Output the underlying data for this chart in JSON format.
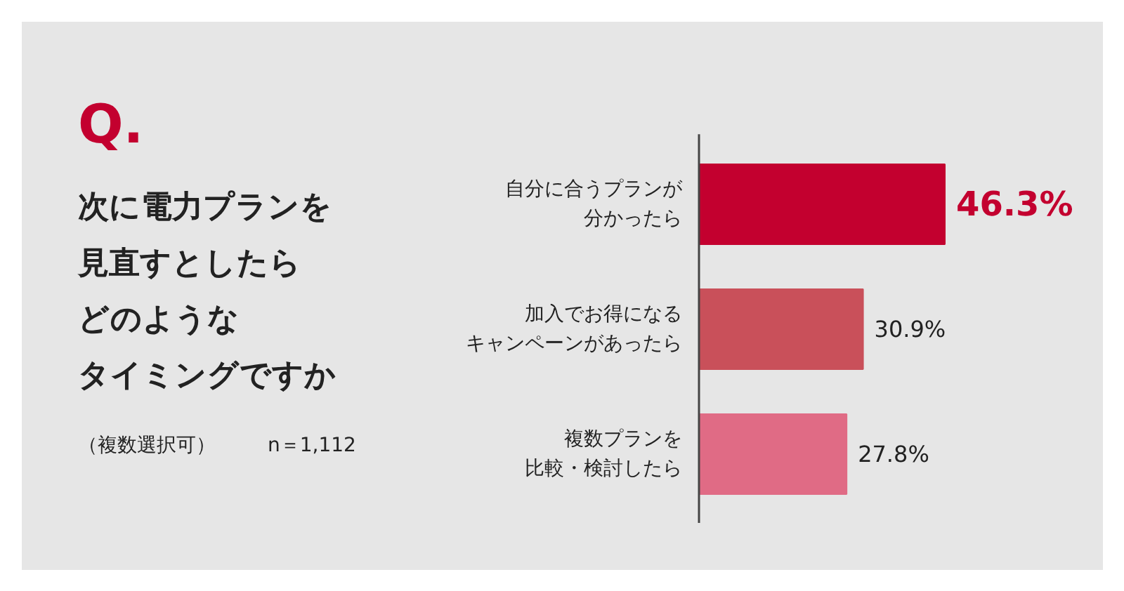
{
  "chart_data": {
    "type": "bar",
    "orientation": "horizontal",
    "title": "Q.",
    "subtitle": "次に電力プランを見直すとしたらどのようなタイミングですか",
    "categories": [
      "自分に合うプランが分かったら",
      "加入でお得になるキャンペーンがあったら",
      "複数プランを比較・検討したら"
    ],
    "values": [
      46.3,
      30.9,
      27.8
    ],
    "colors": [
      "#c3002f",
      "#c9505a",
      "#e06b85"
    ],
    "value_labels": [
      "46.3%",
      "30.9%",
      "27.8%"
    ],
    "annotations": [
      "（複数選択可）",
      "n＝1,112"
    ]
  }
}
